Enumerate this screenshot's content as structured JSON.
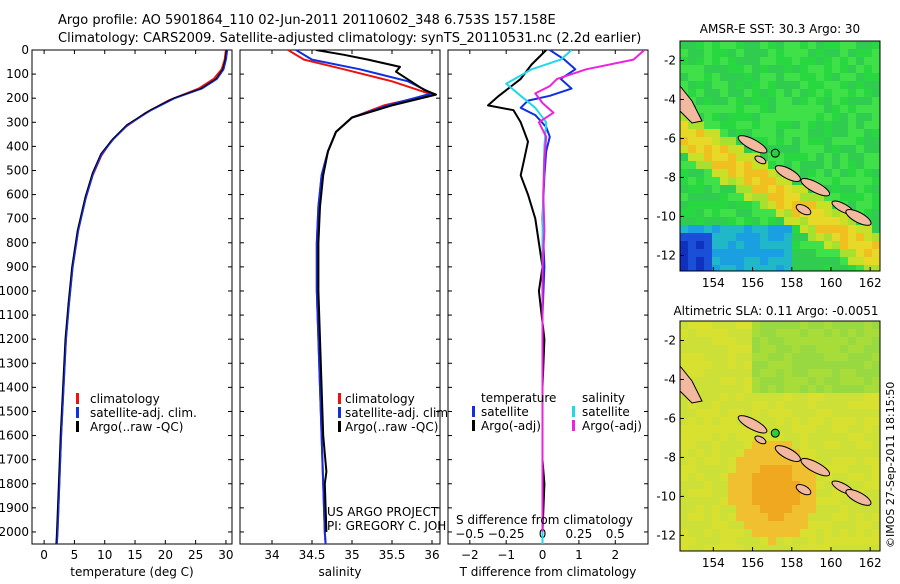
{
  "header": {
    "line1": "Argo profile: AO 5901864_110 02-Jun-2011 20110602_348 6.753S 157.158E",
    "line2": "Climatology: CARS2009. Satellite-adjusted climatology: synTS_20110531.nc (2.2d earlier)"
  },
  "colors": {
    "climatology": "#ee1111",
    "satellite_adj": "#1030e0",
    "argo": "#000000",
    "sal_satellite": "#22d8e8",
    "sal_argo": "#ee22dd"
  },
  "chart_data": [
    {
      "type": "line",
      "panel": "temperature",
      "xlabel": "temperature (deg C)",
      "xlim": [
        -2,
        31
      ],
      "ylim": [
        2050,
        0
      ],
      "xticks": [
        0,
        5,
        10,
        15,
        20,
        25,
        30
      ],
      "xtick_labels": [
        "0",
        "5",
        "10",
        "15",
        "20",
        "25",
        "30"
      ],
      "yticks": [
        0,
        100,
        200,
        300,
        400,
        500,
        600,
        700,
        800,
        900,
        1000,
        1100,
        1200,
        1300,
        1400,
        1500,
        1600,
        1700,
        1800,
        1900,
        2000
      ],
      "ytick_labels": [
        "0",
        "100",
        "200",
        "300",
        "400",
        "500",
        "600",
        "700",
        "800",
        "900",
        "1000",
        "1100",
        "1200",
        "1300",
        "1400",
        "1500",
        "1600",
        "1700",
        "1800",
        "1900",
        "2000"
      ],
      "legend": [
        "climatology",
        "satellite-adj. clim.",
        "Argo(..raw -QC)"
      ],
      "series": [
        {
          "name": "climatology",
          "color": "#ee1111",
          "points": [
            [
              30,
              0
            ],
            [
              29.8,
              40
            ],
            [
              29.3,
              80
            ],
            [
              28,
              120
            ],
            [
              25.5,
              160
            ],
            [
              20.5,
              210
            ],
            [
              16.8,
              260
            ],
            [
              13.4,
              320
            ],
            [
              11,
              380
            ],
            [
              9.4,
              440
            ],
            [
              8,
              520
            ],
            [
              6.8,
              620
            ],
            [
              5.6,
              750
            ],
            [
              4.7,
              900
            ],
            [
              4.1,
              1050
            ],
            [
              3.6,
              1200
            ],
            [
              3.2,
              1400
            ],
            [
              2.8,
              1600
            ],
            [
              2.5,
              1800
            ],
            [
              2.2,
              2000
            ],
            [
              2.1,
              2050
            ]
          ]
        },
        {
          "name": "satellite-adj. clim.",
          "color": "#1030e0",
          "points": [
            [
              30.2,
              0
            ],
            [
              30,
              40
            ],
            [
              29.6,
              80
            ],
            [
              28.5,
              120
            ],
            [
              26,
              160
            ],
            [
              21.5,
              200
            ],
            [
              17.6,
              250
            ],
            [
              13.8,
              310
            ],
            [
              11.4,
              370
            ],
            [
              9.5,
              430
            ],
            [
              8.1,
              510
            ],
            [
              6.9,
              610
            ],
            [
              5.6,
              750
            ],
            [
              4.7,
              900
            ],
            [
              4.1,
              1050
            ],
            [
              3.6,
              1200
            ],
            [
              3.2,
              1400
            ],
            [
              2.8,
              1600
            ],
            [
              2.5,
              1800
            ],
            [
              2.2,
              2000
            ],
            [
              2.1,
              2050
            ]
          ]
        }
      ]
    },
    {
      "type": "line",
      "panel": "salinity",
      "xlabel": "salinity",
      "xlim": [
        33.6,
        36.1
      ],
      "ylim": [
        2050,
        0
      ],
      "xticks": [
        34,
        34.5,
        35,
        35.5,
        36
      ],
      "xtick_labels": [
        "34",
        "34.5",
        "35",
        "35.5",
        "36"
      ],
      "legend": [
        "climatology",
        "satellite-adj. clim.",
        "Argo(..raw -QC)"
      ],
      "annotation": [
        "US ARGO PROJECT",
        "PI: GREGORY C. JOHNSON"
      ],
      "series": [
        {
          "name": "climatology",
          "color": "#ee1111",
          "points": [
            [
              34.2,
              0
            ],
            [
              34.4,
              40
            ],
            [
              34.9,
              80
            ],
            [
              35.5,
              130
            ],
            [
              36,
              185
            ],
            [
              35.4,
              230
            ],
            [
              35,
              280
            ],
            [
              34.8,
              340
            ],
            [
              34.7,
              420
            ],
            [
              34.62,
              520
            ],
            [
              34.58,
              650
            ],
            [
              34.56,
              800
            ],
            [
              34.56,
              1000
            ],
            [
              34.58,
              1200
            ],
            [
              34.6,
              1400
            ],
            [
              34.62,
              1600
            ],
            [
              34.64,
              1800
            ],
            [
              34.66,
              2000
            ],
            [
              34.67,
              2050
            ]
          ]
        },
        {
          "name": "satellite-adj. clim.",
          "color": "#1030e0",
          "points": [
            [
              34.3,
              0
            ],
            [
              34.5,
              40
            ],
            [
              35.1,
              80
            ],
            [
              35.7,
              130
            ],
            [
              36,
              180
            ],
            [
              35.5,
              225
            ],
            [
              35,
              280
            ],
            [
              34.8,
              340
            ],
            [
              34.7,
              420
            ],
            [
              34.62,
              520
            ],
            [
              34.58,
              650
            ],
            [
              34.56,
              800
            ],
            [
              34.56,
              1000
            ],
            [
              34.58,
              1200
            ],
            [
              34.6,
              1400
            ],
            [
              34.62,
              1600
            ],
            [
              34.64,
              1800
            ],
            [
              34.66,
              2000
            ],
            [
              34.67,
              2050
            ]
          ]
        },
        {
          "name": "Argo(..raw -QC)",
          "color": "#000000",
          "points": [
            [
              34.55,
              0
            ],
            [
              34.9,
              20
            ],
            [
              35.2,
              40
            ],
            [
              35.6,
              70
            ],
            [
              35.55,
              90
            ],
            [
              35.9,
              165
            ],
            [
              36.05,
              185
            ],
            [
              35.5,
              230
            ],
            [
              35,
              280
            ],
            [
              34.8,
              340
            ],
            [
              34.7,
              420
            ],
            [
              34.64,
              520
            ],
            [
              34.6,
              650
            ],
            [
              34.58,
              800
            ],
            [
              34.58,
              1000
            ],
            [
              34.6,
              1200
            ],
            [
              34.62,
              1400
            ],
            [
              34.64,
              1600
            ],
            [
              34.68,
              1750
            ],
            [
              34.66,
              1800
            ],
            [
              34.68,
              2000
            ]
          ]
        }
      ]
    },
    {
      "type": "line",
      "panel": "difference",
      "xlabel": "T difference from climatology",
      "xlabel_top": "S difference from climatology",
      "xlim": [
        -2.6,
        2.9
      ],
      "ylim": [
        2050,
        0
      ],
      "xticks": [
        -2,
        -1,
        0,
        1,
        2
      ],
      "xtick_labels": [
        "−2",
        "−1",
        "0",
        "1",
        "2"
      ],
      "sxticks": [
        -2,
        -1,
        0,
        1,
        2
      ],
      "sxtick_labels": [
        "−0.5",
        "−0.25",
        "0",
        "0.25",
        "0.5"
      ],
      "legend_temperature": [
        "temperature",
        "satellite",
        "Argo(-adj)"
      ],
      "legend_salinity": [
        "salinity",
        "satellite",
        "Argo(-adj)"
      ],
      "series": [
        {
          "name": "T satellite",
          "color": "#1030e0",
          "points": [
            [
              0.2,
              0
            ],
            [
              0.6,
              40
            ],
            [
              0.9,
              80
            ],
            [
              0.5,
              120
            ],
            [
              0.8,
              160
            ],
            [
              0.2,
              190
            ],
            [
              -0.4,
              210
            ],
            [
              -0.6,
              240
            ],
            [
              -0.2,
              270
            ],
            [
              0.1,
              320
            ],
            [
              0.2,
              360
            ],
            [
              0.1,
              420
            ],
            [
              0.05,
              520
            ],
            [
              0,
              700
            ],
            [
              0.05,
              900
            ],
            [
              0,
              1100
            ],
            [
              0,
              1400
            ],
            [
              0,
              1700
            ],
            [
              0,
              2000
            ],
            [
              0,
              2050
            ]
          ]
        },
        {
          "name": "T Argo(-adj)",
          "color": "#000000",
          "points": [
            [
              0.1,
              0
            ],
            [
              -0.3,
              60
            ],
            [
              -0.6,
              120
            ],
            [
              -1.2,
              190
            ],
            [
              -1.5,
              230
            ],
            [
              -0.8,
              250
            ],
            [
              -0.6,
              300
            ],
            [
              -0.4,
              380
            ],
            [
              -0.5,
              450
            ],
            [
              -0.6,
              520
            ],
            [
              -0.4,
              600
            ],
            [
              -0.2,
              700
            ],
            [
              -0.1,
              800
            ],
            [
              0,
              900
            ],
            [
              -0.1,
              1000
            ],
            [
              0.05,
              1200
            ],
            [
              0,
              1400
            ],
            [
              0,
              1700
            ],
            [
              0.05,
              1800
            ],
            [
              0,
              2000
            ]
          ]
        },
        {
          "name": "S satellite",
          "color": "#22d8e8",
          "points": [
            [
              0.8,
              0
            ],
            [
              0.5,
              40
            ],
            [
              -0.3,
              80
            ],
            [
              -1,
              140
            ],
            [
              -0.6,
              190
            ],
            [
              -0.2,
              240
            ],
            [
              0.1,
              300
            ],
            [
              0.05,
              400
            ],
            [
              0.02,
              600
            ],
            [
              0,
              800
            ],
            [
              0,
              1000
            ],
            [
              0,
              1300
            ],
            [
              0,
              1600
            ],
            [
              0,
              1900
            ],
            [
              0,
              2050
            ]
          ]
        },
        {
          "name": "S Argo(-adj)",
          "color": "#ee22dd",
          "points": [
            [
              2.8,
              0
            ],
            [
              2.5,
              40
            ],
            [
              1.2,
              80
            ],
            [
              0.4,
              120
            ],
            [
              0.2,
              150
            ],
            [
              -0.2,
              180
            ],
            [
              0,
              220
            ],
            [
              0.3,
              260
            ],
            [
              -0.1,
              300
            ],
            [
              0.1,
              360
            ],
            [
              0.05,
              450
            ],
            [
              0.02,
              600
            ],
            [
              0.05,
              750
            ],
            [
              0,
              900
            ],
            [
              0,
              1200
            ],
            [
              0,
              1500
            ],
            [
              0,
              2000
            ]
          ]
        }
      ]
    },
    {
      "type": "heatmap",
      "panel": "sst-map",
      "title": "AMSR-E SST: 30.3 Argo: 30",
      "xlim": [
        152.3,
        162.5
      ],
      "ylim": [
        -12.8,
        -1
      ],
      "xticks": [
        154,
        156,
        158,
        160,
        162
      ],
      "xtick_labels": [
        "154",
        "156",
        "158",
        "160",
        "162"
      ],
      "yticks": [
        -2,
        -4,
        -6,
        -8,
        -10,
        -12
      ],
      "ytick_labels": [
        "-2",
        "-4",
        "-6",
        "-8",
        "-10",
        "-12"
      ],
      "float_position": [
        157.158,
        -6.753
      ]
    },
    {
      "type": "heatmap",
      "panel": "sla-map",
      "title": "Altimetric SLA: 0.11 Argo: -0.0051",
      "xlim": [
        152.3,
        162.5
      ],
      "ylim": [
        -12.8,
        -1
      ],
      "xticks": [
        154,
        156,
        158,
        160,
        162
      ],
      "xtick_labels": [
        "154",
        "156",
        "158",
        "160",
        "162"
      ],
      "yticks": [
        -2,
        -4,
        -6,
        -8,
        -10,
        -12
      ],
      "ytick_labels": [
        "-2",
        "-4",
        "-6",
        "-8",
        "-10",
        "-12"
      ],
      "float_position": [
        157.158,
        -6.753
      ]
    }
  ],
  "credit": "©IMOS 27-Sep-2011 18:15:50"
}
